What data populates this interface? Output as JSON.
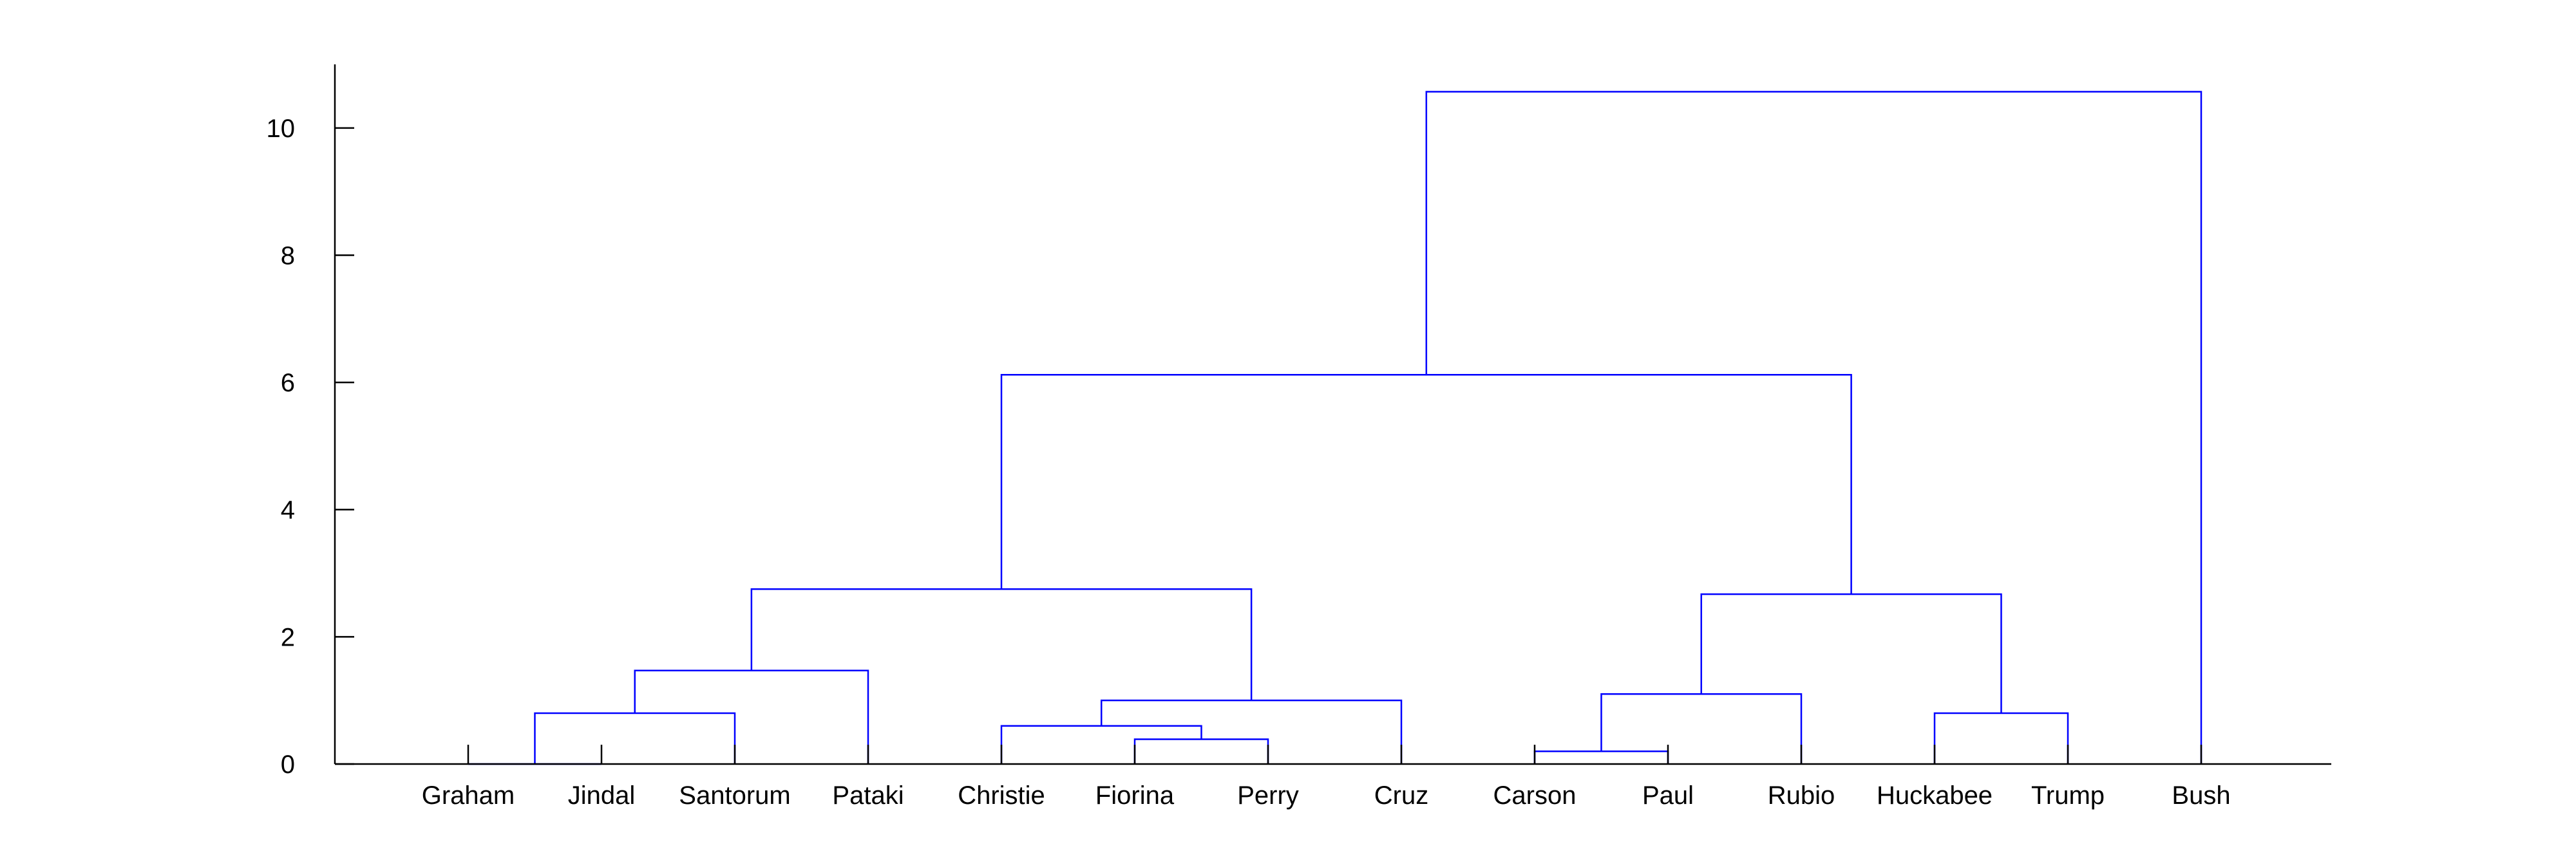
{
  "chart_data": {
    "type": "dendrogram",
    "title": "",
    "xlabel": "",
    "ylabel": "",
    "ylim": [
      0,
      11
    ],
    "y_ticks": [
      "0",
      "2",
      "4",
      "6",
      "8",
      "10"
    ],
    "grid": false,
    "colors": {
      "links": "#0000ff",
      "axes": "#000000"
    },
    "leaves": [
      "Graham",
      "Jindal",
      "Santorum",
      "Pataki",
      "Christie",
      "Fiorina",
      "Perry",
      "Cruz",
      "Carson",
      "Paul",
      "Rubio",
      "Huckabee",
      "Trump",
      "Bush"
    ],
    "merges": [
      {
        "left": "Graham",
        "right": "Jindal",
        "height": 0.0
      },
      {
        "left": "Fiorina",
        "right": "Perry",
        "height": 0.39
      },
      {
        "left": "Carson",
        "right": "Paul",
        "height": 0.2
      },
      {
        "left": "Christie",
        "right": "Fiorina+Perry",
        "height": 0.6
      },
      {
        "left": "Graham+Jindal",
        "right": "Santorum",
        "height": 0.8
      },
      {
        "left": "Huckabee",
        "right": "Trump",
        "height": 0.8
      },
      {
        "left": "Christie+Fiorina+Perry",
        "right": "Cruz",
        "height": 1.0
      },
      {
        "left": "Carson+Paul",
        "right": "Rubio",
        "height": 1.1
      },
      {
        "left": "Graham+Jindal+Santorum",
        "right": "Pataki",
        "height": 1.47
      },
      {
        "left": "Carson+Paul+Rubio",
        "right": "Huckabee+Trump",
        "height": 2.67
      },
      {
        "left": "Graham+Jindal+Santorum+Pataki",
        "right": "Christie+Fiorina+Perry+Cruz",
        "height": 2.75
      },
      {
        "left": "Graham+Jindal+Santorum+Pataki+Christie+Fiorina+Perry+Cruz",
        "right": "Carson+Paul+Rubio+Huckabee+Trump",
        "height": 6.12
      },
      {
        "left": "Graham+Jindal+Santorum+Pataki+Christie+Fiorina+Perry+Cruz+Carson+Paul+Rubio+Huckabee+Trump",
        "right": "Bush",
        "height": 10.57
      }
    ]
  }
}
